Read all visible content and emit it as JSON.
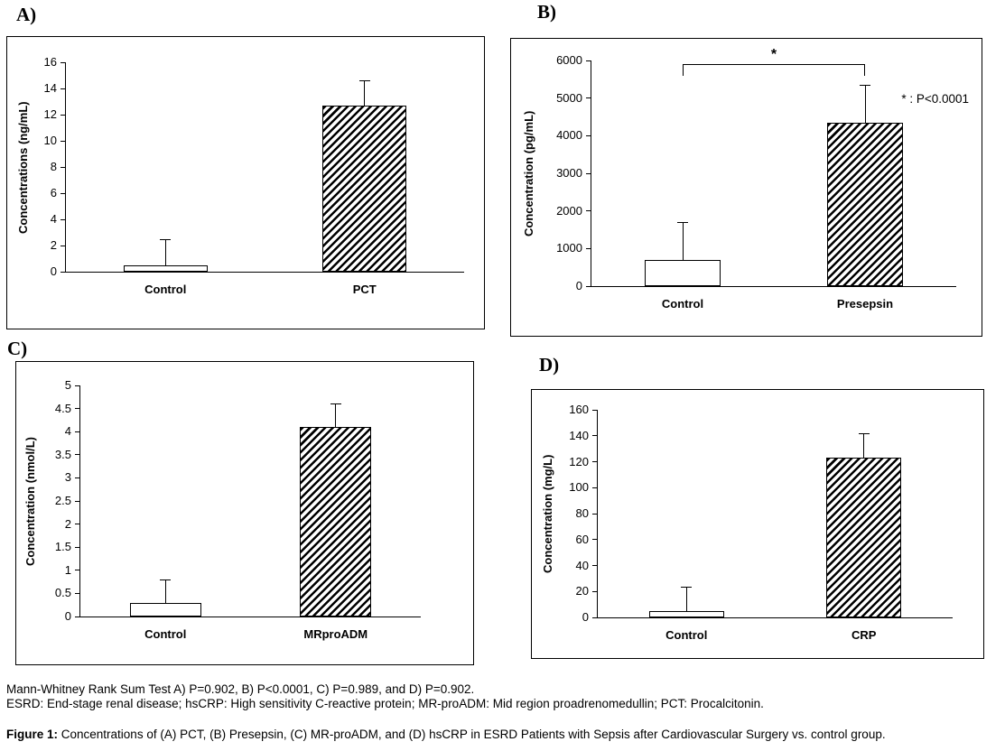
{
  "chart_data": [
    {
      "id": "A",
      "panel_label": "A)",
      "type": "bar",
      "categories": [
        "Control",
        "PCT"
      ],
      "values": [
        0.5,
        12.7
      ],
      "error_upper": [
        2.5,
        14.6
      ],
      "hatched": [
        false,
        true
      ],
      "ylabel": "Concentrations (ng/mL)",
      "ylim": [
        0,
        16
      ],
      "ytick_labels": [
        "0",
        "2",
        "4",
        "6",
        "8",
        "10",
        "12",
        "14",
        "16"
      ],
      "grid": false,
      "legend": false
    },
    {
      "id": "B",
      "panel_label": "B)",
      "type": "bar",
      "categories": [
        "Control",
        "Presepsin"
      ],
      "values": [
        700,
        4350
      ],
      "error_upper": [
        1700,
        5350
      ],
      "hatched": [
        false,
        true
      ],
      "ylabel": "Concentration (pg/mL)",
      "ylim": [
        0,
        6000
      ],
      "ytick_labels": [
        "0",
        "1000",
        "2000",
        "3000",
        "4000",
        "5000",
        "6000"
      ],
      "grid": false,
      "legend": false,
      "significance": {
        "symbol": "*",
        "note": "* : P<0.0001",
        "bracket_y": 5900,
        "note_y": 4950
      }
    },
    {
      "id": "C",
      "panel_label": "C)",
      "type": "bar",
      "categories": [
        "Control",
        "MRproADM"
      ],
      "values": [
        0.3,
        4.1
      ],
      "error_upper": [
        0.8,
        4.6
      ],
      "hatched": [
        false,
        true
      ],
      "ylabel": "Concentration (nmol/L)",
      "ylim": [
        0,
        5
      ],
      "ytick_labels": [
        "0",
        "0.5",
        "1",
        "1.5",
        "2",
        "2.5",
        "3",
        "3.5",
        "4",
        "4.5",
        "5"
      ],
      "grid": false,
      "legend": false
    },
    {
      "id": "D",
      "panel_label": "D)",
      "type": "bar",
      "categories": [
        "Control",
        "CRP"
      ],
      "values": [
        5,
        123
      ],
      "error_upper": [
        24,
        142
      ],
      "hatched": [
        false,
        true
      ],
      "ylabel": "Concentration (mg/L)",
      "ylim": [
        0,
        160
      ],
      "ytick_labels": [
        "0",
        "20",
        "40",
        "60",
        "80",
        "100",
        "120",
        "140",
        "160"
      ],
      "grid": false,
      "legend": false
    }
  ],
  "caption": {
    "line1": "Mann-Whitney Rank Sum Test A) P=0.902, B) P<0.0001, C) P=0.989, and D) P=0.902.",
    "line2": "ESRD: End-stage renal disease; hsCRP: High sensitivity C-reactive protein; MR-proADM: Mid region proadrenomedullin; PCT: Procalcitonin.",
    "figure_label": "Figure 1:",
    "figure_text": " Concentrations of (A) PCT, (B) Presepsin, (C) MR-proADM, and (D) hsCRP in ESRD Patients with Sepsis after Cardiovascular Surgery vs. control group."
  },
  "colors": {
    "axis": "#000000",
    "bar_fill": "#ffffff",
    "hatch_color": "#000000",
    "background": "#ffffff"
  }
}
